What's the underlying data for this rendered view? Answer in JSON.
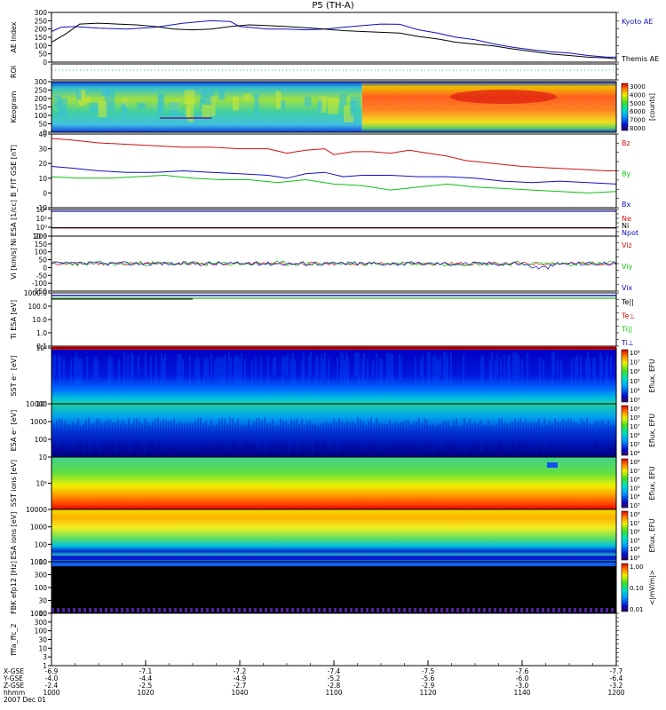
{
  "title": "P5 (TH-A)",
  "colors": {
    "blue": "#1010c0",
    "red": "#d01010",
    "green": "#10c010",
    "black": "#000000",
    "aqua": "#20c0a0"
  },
  "chart_data": [
    {
      "id": "ae",
      "type": "line",
      "ylabel": "AE Index",
      "ylim": [
        0,
        300
      ],
      "yticks": [
        "0",
        "50",
        "100",
        "150",
        "200",
        "250",
        "300"
      ],
      "series": [
        {
          "name": "Kyoto AE",
          "color": "blue",
          "x": [
            0,
            2,
            5,
            10,
            16,
            22,
            28,
            34,
            38,
            40,
            42,
            44,
            46,
            50,
            54,
            58,
            62,
            66,
            70,
            74,
            78,
            82,
            86,
            90,
            94,
            98,
            102,
            106,
            110,
            114,
            118,
            120
          ],
          "y": [
            185,
            210,
            215,
            205,
            200,
            210,
            235,
            250,
            245,
            215,
            210,
            205,
            200,
            200,
            195,
            200,
            210,
            220,
            230,
            228,
            195,
            175,
            150,
            135,
            110,
            90,
            75,
            62,
            55,
            40,
            30,
            30
          ]
        },
        {
          "name": "Themis AE",
          "color": "black",
          "x": [
            0,
            3,
            6,
            10,
            14,
            18,
            22,
            26,
            30,
            34,
            38,
            42,
            46,
            50,
            54,
            58,
            62,
            66,
            70,
            74,
            78,
            82,
            86,
            90,
            94,
            98,
            102,
            106,
            110,
            114,
            118,
            120
          ],
          "y": [
            120,
            170,
            230,
            235,
            230,
            225,
            215,
            200,
            195,
            200,
            215,
            225,
            220,
            215,
            208,
            200,
            190,
            185,
            180,
            175,
            155,
            140,
            120,
            108,
            98,
            80,
            65,
            50,
            40,
            30,
            25,
            20
          ]
        }
      ]
    },
    {
      "id": "roi",
      "type": "line",
      "ylabel": "ROI",
      "series": [
        {
          "name": "",
          "color": "aqua",
          "x": [
            0,
            120
          ],
          "y": [
            0.5,
            0.5
          ]
        }
      ]
    },
    {
      "id": "keogram",
      "type": "heatmap",
      "ylabel": "Keogram",
      "ylim": [
        0,
        300
      ],
      "yticks": [
        "0",
        "50",
        "100",
        "150",
        "200",
        "250",
        "300"
      ],
      "colorbar": {
        "label": "[counts]",
        "range": [
          3000,
          8000
        ],
        "ticks": [
          "3000",
          "4000",
          "5000",
          "6000",
          "7000",
          "8000"
        ]
      }
    },
    {
      "id": "bfit",
      "type": "line",
      "ylabel": "B_FIT GSE [nT]",
      "ylim": [
        -10,
        40
      ],
      "yticks": [
        "-10",
        "0",
        "10",
        "20",
        "30",
        "40"
      ],
      "series": [
        {
          "name": "Bz",
          "color": "red",
          "x": [
            0,
            4,
            10,
            16,
            22,
            28,
            34,
            40,
            46,
            50,
            54,
            58,
            60,
            64,
            68,
            72,
            76,
            80,
            84,
            88,
            94,
            100,
            106,
            112,
            118,
            120
          ],
          "y": [
            37,
            36,
            34,
            33,
            32,
            31,
            31,
            30,
            30,
            27,
            29,
            30,
            26,
            28,
            28,
            27,
            29,
            27,
            25,
            22,
            20,
            18,
            17,
            16,
            15,
            15
          ]
        },
        {
          "name": "By",
          "color": "green",
          "x": [
            0,
            6,
            12,
            18,
            24,
            30,
            36,
            42,
            48,
            54,
            60,
            66,
            72,
            78,
            84,
            90,
            96,
            102,
            108,
            114,
            120
          ],
          "y": [
            11,
            10,
            10,
            11,
            12,
            10,
            9,
            9,
            7,
            9,
            6,
            5,
            2,
            4,
            6,
            4,
            3,
            2,
            1,
            0,
            1
          ]
        },
        {
          "name": "Bx",
          "color": "blue",
          "x": [
            0,
            4,
            10,
            16,
            22,
            28,
            34,
            40,
            46,
            50,
            54,
            58,
            62,
            66,
            72,
            78,
            84,
            90,
            96,
            102,
            108,
            114,
            120
          ],
          "y": [
            18,
            17,
            15,
            14,
            14,
            15,
            14,
            13,
            12,
            10,
            13,
            14,
            11,
            12,
            12,
            11,
            11,
            10,
            8,
            7,
            8,
            7,
            6
          ]
        }
      ]
    },
    {
      "id": "density",
      "type": "line",
      "ylabel": "Ni ESA [1/cc]",
      "yticks": [
        "10⁻²",
        "10⁰",
        "10²",
        "10⁴"
      ],
      "series": [
        {
          "name": "Ne",
          "color": "red",
          "x": [
            0,
            120
          ],
          "y": [
            0.45,
            0.45
          ]
        },
        {
          "name": "Ni",
          "color": "black",
          "x": [
            0,
            120
          ],
          "y": [
            0.47,
            0.47
          ]
        },
        {
          "name": "Npot",
          "color": "blue",
          "x": [
            0,
            120
          ],
          "y": [
            10000,
            10000
          ]
        }
      ]
    },
    {
      "id": "velocity",
      "type": "line",
      "ylabel": "Vi [km/s]",
      "ylim": [
        -200,
        200
      ],
      "yticks": [
        "-150",
        "-100",
        "-50",
        "0",
        "50",
        "100",
        "150",
        "200"
      ],
      "series": [
        {
          "name": "Viz",
          "color": "red"
        },
        {
          "name": "Viy",
          "color": "green"
        },
        {
          "name": "Vix",
          "color": "blue"
        }
      ]
    },
    {
      "id": "temperature",
      "type": "line",
      "ylabel": "Ti ESA [eV]",
      "yticks": [
        "0.1",
        "1.0",
        "10.0",
        "100.0",
        "1000.0"
      ],
      "series": [
        {
          "name": "Te||",
          "color": "black"
        },
        {
          "name": "Te⊥",
          "color": "red"
        },
        {
          "name": "Ti||",
          "color": "green"
        },
        {
          "name": "Ti⊥",
          "color": "blue"
        }
      ]
    },
    {
      "id": "sst_e",
      "type": "heatmap",
      "ylabel": "SST e⁻ [eV]",
      "yticks": [
        "10⁵",
        "10⁶"
      ],
      "colorbar": {
        "label": "Eflux, EFU",
        "ticks": [
          "10⁸",
          "10⁷",
          "10⁶",
          "10⁵",
          "10⁴",
          "10³"
        ]
      }
    },
    {
      "id": "esa_e",
      "type": "heatmap",
      "ylabel": "ESA e⁻ [eV]",
      "yticks": [
        "10",
        "100",
        "1000",
        "10000"
      ],
      "colorbar": {
        "label": "Eflux, EFU",
        "ticks": [
          "10⁹",
          "10⁸",
          "10⁷",
          "10⁶",
          "10⁵",
          "10⁴"
        ]
      }
    },
    {
      "id": "sst_i",
      "type": "heatmap",
      "ylabel": "SST ions [eV]",
      "yticks": [
        "10⁵"
      ],
      "colorbar": {
        "label": "Eflux, EFU",
        "ticks": [
          "10⁸",
          "10⁷",
          "10⁶",
          "10⁵",
          "10⁴",
          "10³"
        ]
      }
    },
    {
      "id": "esa_i",
      "type": "heatmap",
      "ylabel": "ESA ions [eV]",
      "yticks": [
        "10",
        "100",
        "1000",
        "10000"
      ],
      "colorbar": {
        "label": "Eflux, EFU",
        "ticks": [
          "10⁸",
          "10⁷",
          "10⁶",
          "10⁵",
          "10⁴",
          "10³"
        ]
      }
    },
    {
      "id": "fbk",
      "type": "heatmap",
      "ylabel": "FBK efp12 [Hz]",
      "yticks": [
        "10",
        "30",
        "100",
        "300",
        "1000"
      ],
      "colorbar": {
        "label": "<|mV/m|>",
        "ticks": [
          "1.00",
          "0.10",
          "0.01"
        ]
      }
    },
    {
      "id": "fft",
      "type": "line",
      "ylabel": "fffa_ffc_2",
      "yticks": [
        "1",
        "3",
        "10",
        "30",
        "100",
        "300",
        "1000"
      ]
    }
  ],
  "xaxis": {
    "row_labels": [
      "X-GSE",
      "Y-GSE",
      "Z-GSE",
      "hhmm",
      "2007 Dec 01"
    ],
    "columns": [
      {
        "x": "-6.9",
        "y": "-4.0",
        "z": "-2.4",
        "t": "1000"
      },
      {
        "x": "-7.1",
        "y": "-4.4",
        "z": "-2.5",
        "t": "1020"
      },
      {
        "x": "-7.2",
        "y": "-4.9",
        "z": "-2.7",
        "t": "1040"
      },
      {
        "x": "-7.4",
        "y": "-5.2",
        "z": "-2.8",
        "t": "1100"
      },
      {
        "x": "-7.5",
        "y": "-5.6",
        "z": "-2.9",
        "t": "1120"
      },
      {
        "x": "-7.6",
        "y": "-6.0",
        "z": "-3.0",
        "t": "1140"
      },
      {
        "x": "-7.7",
        "y": "-6.4",
        "z": "-3.2",
        "t": "1200"
      }
    ]
  }
}
